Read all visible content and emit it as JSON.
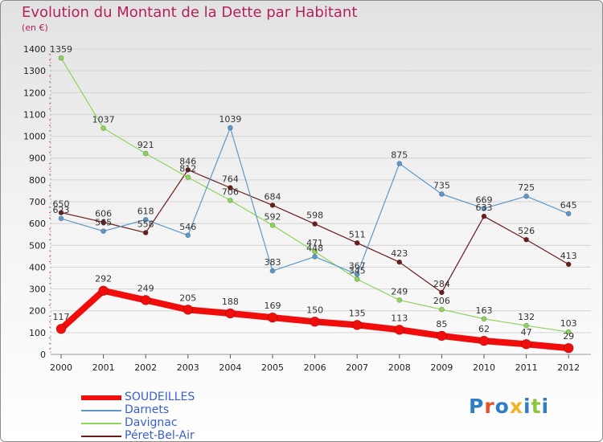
{
  "title": "Evolution du Montant de la Dette par Habitant",
  "subtitle": "(en €)",
  "logo": {
    "text": "Proxiti",
    "letter_colors": [
      "#2f7dc4",
      "#e8522a",
      "#2f7dc4",
      "#f3b229",
      "#2f7dc4",
      "#8cc63f",
      "#2f7dc4"
    ]
  },
  "chart_data": {
    "type": "line",
    "title": "Evolution du Montant de la Dette par Habitant",
    "ylabel": "(en €)",
    "xlabel": "",
    "categories": [
      "2000",
      "2001",
      "2002",
      "2003",
      "2004",
      "2005",
      "2006",
      "2007",
      "2008",
      "2009",
      "2010",
      "2011",
      "2012"
    ],
    "ylim": [
      0,
      1400
    ],
    "yticks": [
      0,
      100,
      200,
      300,
      400,
      500,
      600,
      700,
      800,
      900,
      1000,
      1100,
      1200,
      1300,
      1400
    ],
    "grid": "horizontal",
    "legend_position": "bottom-left",
    "series": [
      {
        "name": "Péret-Bel-Air",
        "color": "#6b1c1c",
        "width": 1.2,
        "radius": 3,
        "values": [
          650,
          606,
          558,
          846,
          764,
          684,
          598,
          511,
          423,
          284,
          633,
          526,
          413
        ]
      },
      {
        "name": "Davignac",
        "color": "#8fd45a",
        "width": 1.2,
        "radius": 3,
        "values": [
          1359,
          1037,
          921,
          812,
          706,
          592,
          471,
          345,
          249,
          206,
          163,
          132,
          103
        ]
      },
      {
        "name": "Darnets",
        "color": "#5d98c8",
        "width": 1.2,
        "radius": 3,
        "values": [
          623,
          565,
          618,
          546,
          1039,
          383,
          448,
          367,
          875,
          735,
          669,
          725,
          645
        ]
      },
      {
        "name": "SOUDEILLES",
        "color": "#f20d0d",
        "width": 8,
        "radius": 6,
        "values": [
          117,
          292,
          249,
          205,
          188,
          169,
          150,
          135,
          113,
          85,
          62,
          47,
          29
        ]
      }
    ],
    "legend_order": [
      "SOUDEILLES",
      "Darnets",
      "Davignac",
      "Péret-Bel-Air"
    ]
  }
}
